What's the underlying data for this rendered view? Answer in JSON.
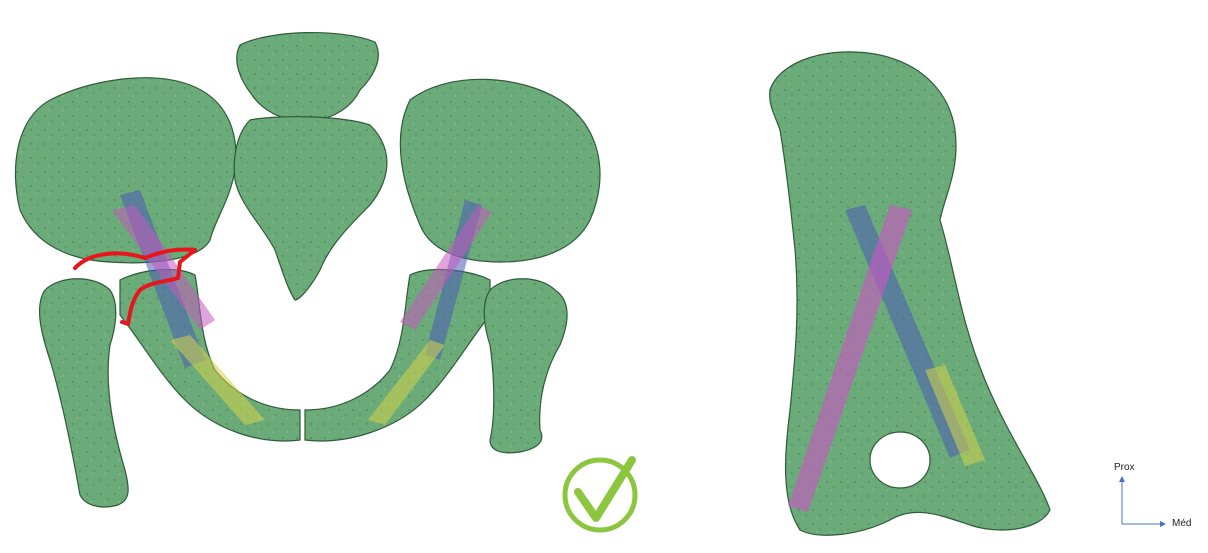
{
  "figure": {
    "left_view": {
      "bone_color": "#6aab79",
      "bone_shadow_color": "#2f5a3a",
      "fracture_line_color": "#e8161c",
      "corridor_colors": {
        "blue": "#4a5bb8",
        "pink": "#c45ac0",
        "yellow": "#d6d24a"
      },
      "checkmark_icon": "check-mark-icon",
      "checkmark_color": "#8cc63f"
    },
    "right_view": {
      "bone_color": "#6aab79",
      "corridor_colors": {
        "blue": "#4a5bb8",
        "pink": "#c45ac0",
        "yellow": "#d6d24a"
      }
    },
    "orientation": {
      "vertical_label": "Prox",
      "horizontal_label": "Méd",
      "arrow_color": "#4a72c4"
    }
  }
}
